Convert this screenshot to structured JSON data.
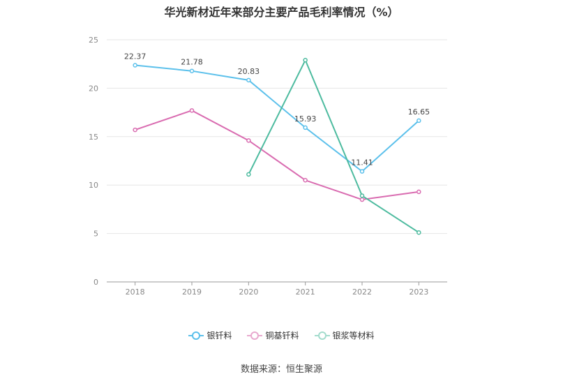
{
  "chart_data": {
    "type": "line",
    "title": "华光新材近年来部分主要产品毛利率情况（%）",
    "categories": [
      "2018",
      "2019",
      "2020",
      "2021",
      "2022",
      "2023"
    ],
    "ylim": [
      0,
      25
    ],
    "yticks": [
      0,
      5,
      10,
      15,
      20,
      25
    ],
    "grid": true,
    "legend_position": "bottom",
    "series": [
      {
        "name": "银钎料",
        "color": "#5bc0eb",
        "values": [
          22.37,
          21.78,
          20.83,
          15.93,
          11.41,
          16.65
        ],
        "show_labels": true
      },
      {
        "name": "铜基钎料",
        "color": "#d96bb0",
        "values": [
          15.7,
          17.7,
          14.6,
          10.5,
          8.5,
          9.3
        ],
        "show_labels": false
      },
      {
        "name": "银浆等材料",
        "color": "#4dbb9f",
        "values": [
          null,
          null,
          11.1,
          22.9,
          8.9,
          5.1
        ],
        "show_labels": false
      }
    ]
  },
  "source_text": "数据来源：恒生聚源"
}
